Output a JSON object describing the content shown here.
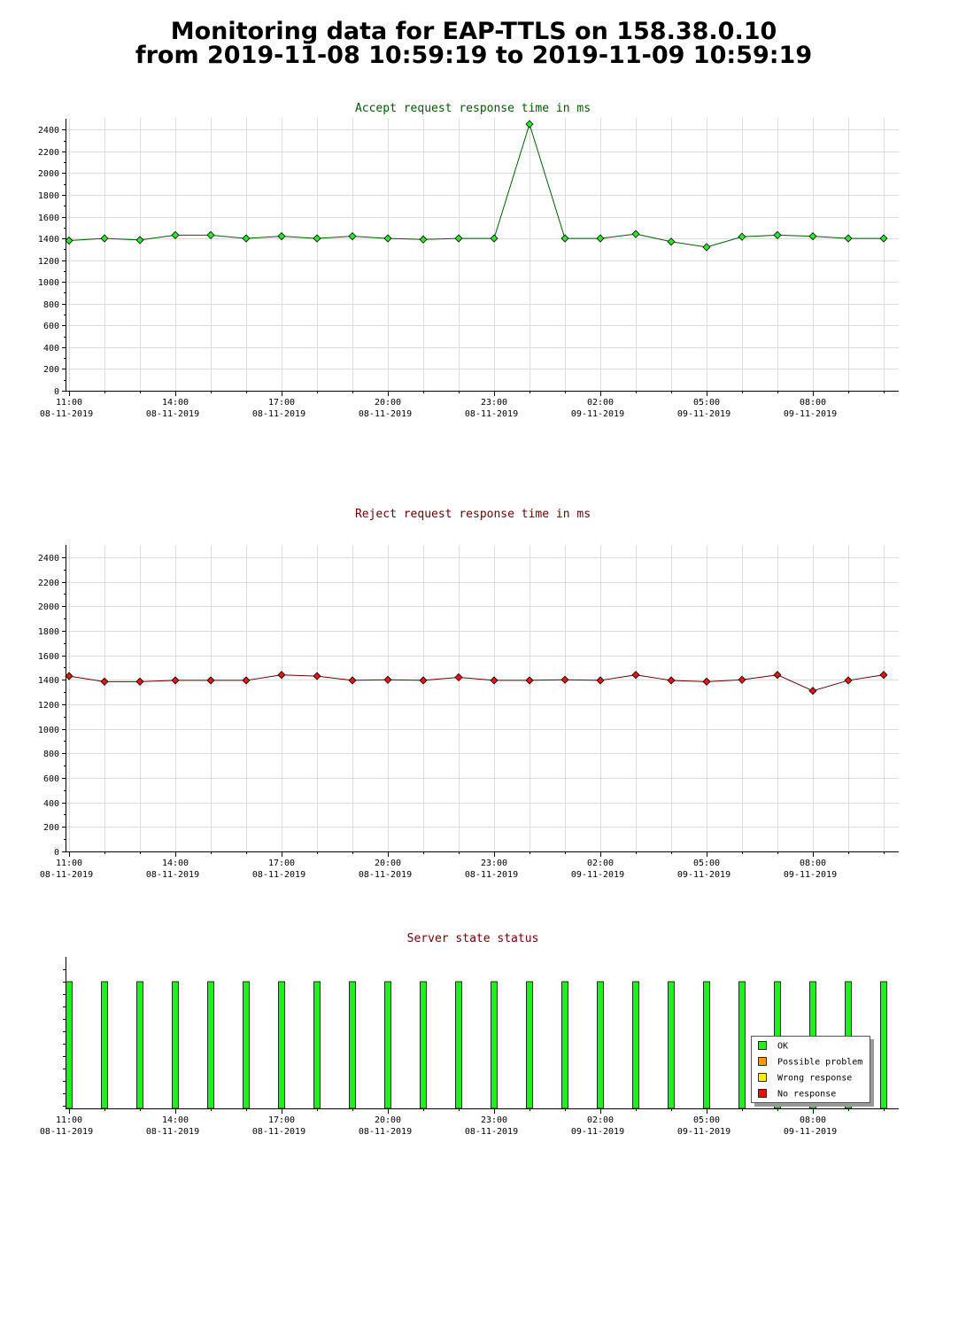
{
  "header": {
    "line1": "Monitoring data for EAP-TTLS on 158.38.0.10",
    "line2": "from 2019-11-08 10:59:19 to 2019-11-09 10:59:19"
  },
  "colors": {
    "accept_title": "#005a00",
    "reject_title": "#6a0000",
    "status_title": "#6a0000",
    "accept_line": "#005a00",
    "accept_marker": "#22ee22",
    "reject_line": "#6a0000",
    "reject_marker": "#ee1111",
    "ok": "#22ee22",
    "possible_problem": "#ff9900",
    "wrong_response": "#ffee00",
    "no_response": "#ee1111",
    "grid": "#dcdcdc"
  },
  "chart_data": [
    {
      "type": "line",
      "title": "Accept request response time in ms",
      "x_time_labels": [
        "11:00",
        "14:00",
        "17:00",
        "20:00",
        "23:00",
        "02:00",
        "05:00",
        "08:00"
      ],
      "x_date_labels": [
        "08-11-2019",
        "08-11-2019",
        "08-11-2019",
        "08-11-2019",
        "08-11-2019",
        "09-11-2019",
        "09-11-2019",
        "09-11-2019"
      ],
      "x": [
        "2019-11-08 11:00",
        "2019-11-08 12:00",
        "2019-11-08 13:00",
        "2019-11-08 14:00",
        "2019-11-08 15:00",
        "2019-11-08 16:00",
        "2019-11-08 17:00",
        "2019-11-08 18:00",
        "2019-11-08 19:00",
        "2019-11-08 20:00",
        "2019-11-08 21:00",
        "2019-11-08 22:00",
        "2019-11-08 23:00",
        "2019-11-09 00:00",
        "2019-11-09 01:00",
        "2019-11-09 02:00",
        "2019-11-09 03:00",
        "2019-11-09 04:00",
        "2019-11-09 05:00",
        "2019-11-09 06:00",
        "2019-11-09 07:00",
        "2019-11-09 08:00",
        "2019-11-09 09:00",
        "2019-11-09 10:00"
      ],
      "values": [
        1380,
        1400,
        1385,
        1430,
        1430,
        1400,
        1420,
        1400,
        1420,
        1400,
        1390,
        1400,
        1400,
        2450,
        1400,
        1400,
        1440,
        1370,
        1320,
        1415,
        1430,
        1420,
        1400,
        1400
      ],
      "y_ticks": [
        0,
        200,
        400,
        600,
        800,
        1000,
        1200,
        1400,
        1600,
        1800,
        2000,
        2200,
        2400
      ],
      "ylim": [
        0,
        2500
      ],
      "grid": true
    },
    {
      "type": "line",
      "title": "Reject request response time in ms",
      "x_time_labels": [
        "11:00",
        "14:00",
        "17:00",
        "20:00",
        "23:00",
        "02:00",
        "05:00",
        "08:00"
      ],
      "x_date_labels": [
        "08-11-2019",
        "08-11-2019",
        "08-11-2019",
        "08-11-2019",
        "08-11-2019",
        "09-11-2019",
        "09-11-2019",
        "09-11-2019"
      ],
      "x": [
        "2019-11-08 11:00",
        "2019-11-08 12:00",
        "2019-11-08 13:00",
        "2019-11-08 14:00",
        "2019-11-08 15:00",
        "2019-11-08 16:00",
        "2019-11-08 17:00",
        "2019-11-08 18:00",
        "2019-11-08 19:00",
        "2019-11-08 20:00",
        "2019-11-08 21:00",
        "2019-11-08 22:00",
        "2019-11-08 23:00",
        "2019-11-09 00:00",
        "2019-11-09 01:00",
        "2019-11-09 02:00",
        "2019-11-09 03:00",
        "2019-11-09 04:00",
        "2019-11-09 05:00",
        "2019-11-09 06:00",
        "2019-11-09 07:00",
        "2019-11-09 08:00",
        "2019-11-09 09:00",
        "2019-11-09 10:00"
      ],
      "values": [
        1430,
        1385,
        1385,
        1395,
        1395,
        1395,
        1440,
        1430,
        1395,
        1400,
        1395,
        1420,
        1395,
        1395,
        1400,
        1395,
        1440,
        1395,
        1385,
        1400,
        1440,
        1310,
        1395,
        1440
      ],
      "y_ticks": [
        0,
        200,
        400,
        600,
        800,
        1000,
        1200,
        1400,
        1600,
        1800,
        2000,
        2200,
        2400
      ],
      "ylim": [
        0,
        2500
      ],
      "grid": true
    },
    {
      "type": "bar",
      "title": "Server state status",
      "x_time_labels": [
        "11:00",
        "14:00",
        "17:00",
        "20:00",
        "23:00",
        "02:00",
        "05:00",
        "08:00"
      ],
      "x_date_labels": [
        "08-11-2019",
        "08-11-2019",
        "08-11-2019",
        "08-11-2019",
        "08-11-2019",
        "09-11-2019",
        "09-11-2019",
        "09-11-2019"
      ],
      "x": [
        "2019-11-08 11:00",
        "2019-11-08 12:00",
        "2019-11-08 13:00",
        "2019-11-08 14:00",
        "2019-11-08 15:00",
        "2019-11-08 16:00",
        "2019-11-08 17:00",
        "2019-11-08 18:00",
        "2019-11-08 19:00",
        "2019-11-08 20:00",
        "2019-11-08 21:00",
        "2019-11-08 22:00",
        "2019-11-08 23:00",
        "2019-11-09 00:00",
        "2019-11-09 01:00",
        "2019-11-09 02:00",
        "2019-11-09 03:00",
        "2019-11-09 04:00",
        "2019-11-09 05:00",
        "2019-11-09 06:00",
        "2019-11-09 07:00",
        "2019-11-09 08:00",
        "2019-11-09 09:00",
        "2019-11-09 10:00"
      ],
      "states": [
        "OK",
        "OK",
        "OK",
        "OK",
        "OK",
        "OK",
        "OK",
        "OK",
        "OK",
        "OK",
        "OK",
        "OK",
        "OK",
        "OK",
        "OK",
        "OK",
        "OK",
        "OK",
        "OK",
        "OK",
        "OK",
        "OK",
        "OK",
        "OK"
      ],
      "legend": {
        "placement": "bottom-right",
        "entries": [
          {
            "label": "OK",
            "color": "#22ee22"
          },
          {
            "label": "Possible problem",
            "color": "#ff9900"
          },
          {
            "label": "Wrong response",
            "color": "#ffee00"
          },
          {
            "label": "No response",
            "color": "#ee1111"
          }
        ]
      },
      "grid": false
    }
  ]
}
